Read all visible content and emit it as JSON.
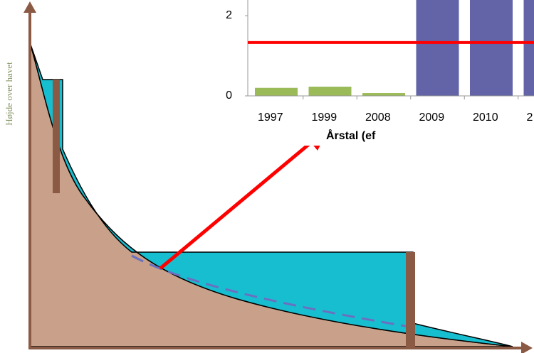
{
  "chart_data": {
    "type": "bar",
    "categories": [
      "1997",
      "1999",
      "2008",
      "2009",
      "2010",
      "2"
    ],
    "values": [
      0.2,
      0.23,
      0.07,
      2.4,
      2.4,
      2.4
    ],
    "colors": [
      "#9bbb59",
      "#9bbb59",
      "#9bbb59",
      "#6264a7",
      "#6264a7",
      "#6264a7"
    ],
    "ylim": [
      0,
      2.39
    ],
    "yticks": [
      0,
      2
    ],
    "x_label": "Årstal (ef",
    "reference_line": {
      "value": 1.33,
      "color": "#ff0000"
    }
  },
  "diagram": {
    "y_axis_label": "Højde over havet"
  }
}
